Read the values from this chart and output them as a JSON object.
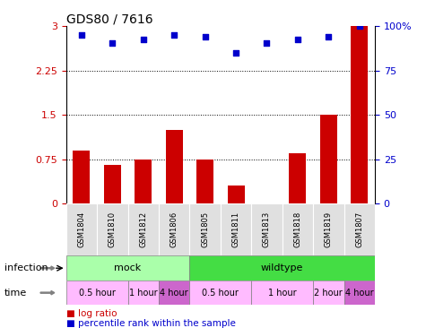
{
  "title": "GDS80 / 7616",
  "samples": [
    "GSM1804",
    "GSM1810",
    "GSM1812",
    "GSM1806",
    "GSM1805",
    "GSM1811",
    "GSM1813",
    "GSM1818",
    "GSM1819",
    "GSM1807"
  ],
  "log_ratio": [
    0.9,
    0.65,
    0.75,
    1.25,
    0.75,
    0.3,
    0.0,
    0.85,
    1.5,
    3.0
  ],
  "percentile": [
    2.85,
    2.72,
    2.78,
    2.85,
    2.82,
    2.55,
    2.72,
    2.78,
    2.82,
    3.0
  ],
  "bar_color": "#cc0000",
  "dot_color": "#0000cc",
  "y_left_ticks": [
    0,
    0.75,
    1.5,
    2.25,
    3
  ],
  "y_left_labels": [
    "0",
    "0.75",
    "1.5",
    "2.25",
    "3"
  ],
  "y_right_ticks": [
    0,
    25,
    50,
    75,
    100
  ],
  "y_right_labels": [
    "0",
    "25",
    "50",
    "75",
    "100%"
  ],
  "hlines": [
    0.75,
    1.5,
    2.25
  ],
  "infection_groups": [
    {
      "label": "mock",
      "start": 0,
      "end": 4,
      "color": "#aaffaa"
    },
    {
      "label": "wildtype",
      "start": 4,
      "end": 10,
      "color": "#44dd44"
    }
  ],
  "time_groups": [
    {
      "label": "0.5 hour",
      "start": 0,
      "end": 2,
      "color": "#ffbbff"
    },
    {
      "label": "1 hour",
      "start": 2,
      "end": 3,
      "color": "#ffbbff"
    },
    {
      "label": "4 hour",
      "start": 3,
      "end": 4,
      "color": "#cc66cc"
    },
    {
      "label": "0.5 hour",
      "start": 4,
      "end": 6,
      "color": "#ffbbff"
    },
    {
      "label": "1 hour",
      "start": 6,
      "end": 8,
      "color": "#ffbbff"
    },
    {
      "label": "2 hour",
      "start": 8,
      "end": 9,
      "color": "#ffbbff"
    },
    {
      "label": "4 hour",
      "start": 9,
      "end": 10,
      "color": "#cc66cc"
    }
  ],
  "legend_log_label": "log ratio",
  "legend_pct_label": "percentile rank within the sample",
  "infection_label": "infection",
  "time_label": "time"
}
